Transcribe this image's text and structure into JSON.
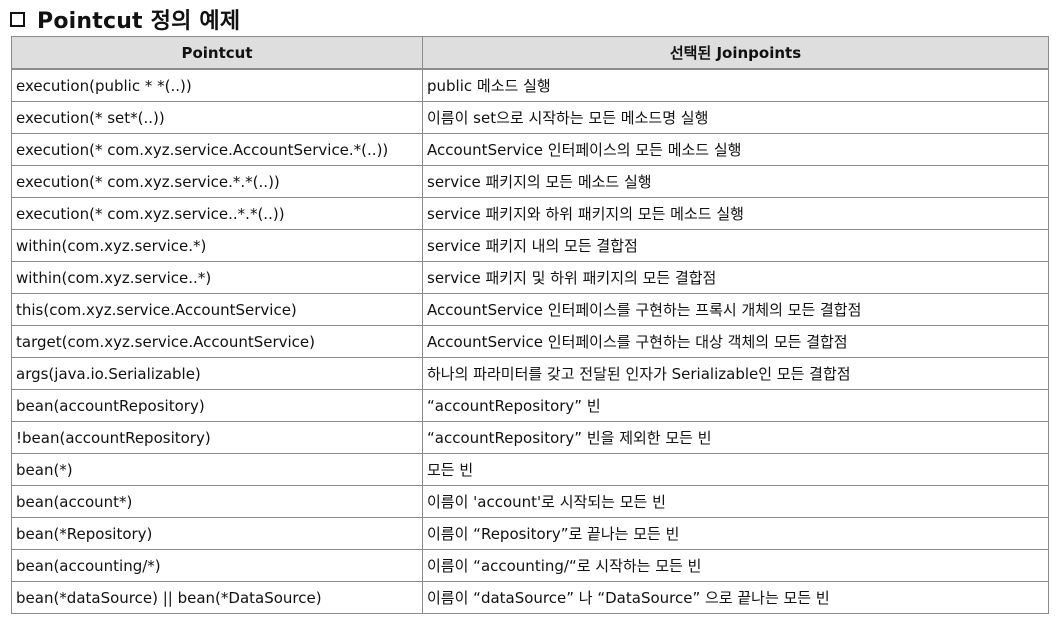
{
  "title": "Pointcut  정의 예제",
  "table": {
    "headers": [
      "Pointcut",
      "선택된 Joinpoints"
    ],
    "rows": [
      [
        "execution(public * *(..))",
        "public 메소드 실행"
      ],
      [
        "execution(* set*(..))",
        "이름이 set으로 시작하는 모든 메소드명 실행"
      ],
      [
        "execution(* com.xyz.service.AccountService.*(..))",
        "AccountService 인터페이스의 모든 메소드 실행"
      ],
      [
        "execution(* com.xyz.service.*.*(..))",
        "service 패키지의 모든 메소드 실행"
      ],
      [
        "execution(* com.xyz.service..*.*(..))",
        "service 패키지와 하위 패키지의 모든 메소드 실행"
      ],
      [
        "within(com.xyz.service.*)",
        "service 패키지 내의 모든 결합점"
      ],
      [
        "within(com.xyz.service..*)",
        "service 패키지 및 하위 패키지의 모든 결합점"
      ],
      [
        "this(com.xyz.service.AccountService)",
        "AccountService 인터페이스를 구현하는 프록시 개체의 모든 결합점"
      ],
      [
        "target(com.xyz.service.AccountService)",
        "AccountService 인터페이스를 구현하는 대상 객체의 모든 결합점"
      ],
      [
        "args(java.io.Serializable)",
        "하나의 파라미터를 갖고 전달된 인자가 Serializable인 모든 결합점"
      ],
      [
        "bean(accountRepository)",
        "“accountRepository” 빈"
      ],
      [
        "!bean(accountRepository)",
        "“accountRepository” 빈을 제외한 모든 빈"
      ],
      [
        "bean(*)",
        "모든 빈"
      ],
      [
        "bean(account*)",
        "이름이 'account'로 시작되는 모든 빈"
      ],
      [
        "bean(*Repository)",
        "이름이 “Repository”로 끝나는 모든 빈"
      ],
      [
        "bean(accounting/*)",
        "이름이 “accounting/“로 시작하는 모든 빈"
      ],
      [
        "bean(*dataSource) || bean(*DataSource)",
        "이름이 “dataSource” 나 “DataSource” 으로 끝나는 모든 빈"
      ]
    ]
  }
}
